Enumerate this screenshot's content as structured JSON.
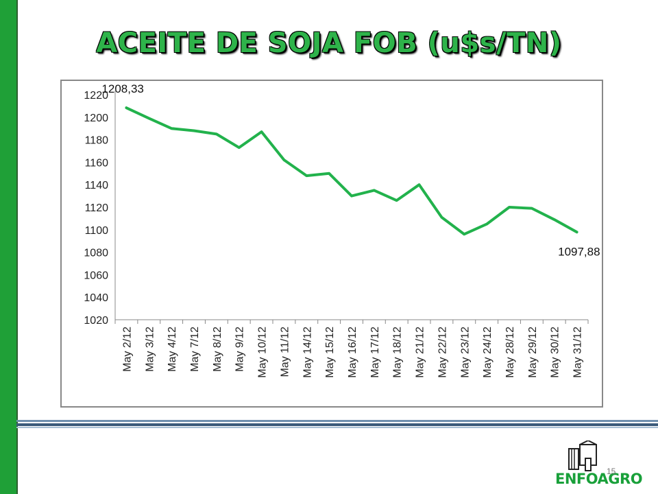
{
  "slide": {
    "title": "ACEITE DE SOJA FOB (u$s/TN)",
    "page_number": "15",
    "logo_text": "ENFOAGRO"
  },
  "colors": {
    "line": "#22b24c",
    "accent_bar": "#1fa037",
    "title": "#2eb34a"
  },
  "chart_data": {
    "type": "line",
    "title": "",
    "xlabel": "",
    "ylabel": "",
    "ylim": [
      1020,
      1220
    ],
    "yticks": [
      1020,
      1040,
      1060,
      1080,
      1100,
      1120,
      1140,
      1160,
      1180,
      1200,
      1220
    ],
    "grid": false,
    "legend": "none",
    "categories": [
      "May 2/12",
      "May 3/12",
      "May 4/12",
      "May 7/12",
      "May 8/12",
      "May 9/12",
      "May 10/12",
      "May 11/12",
      "May 14/12",
      "May 15/12",
      "May 16/12",
      "May 17/12",
      "May 18/12",
      "May 21/12",
      "May 22/12",
      "May 23/12",
      "May 24/12",
      "May 28/12",
      "May 29/12",
      "May 30/12",
      "May 31/12"
    ],
    "values": [
      1208.33,
      1199,
      1190,
      1188,
      1185,
      1173,
      1187,
      1162,
      1148,
      1150,
      1130,
      1135,
      1126,
      1140,
      1111,
      1096,
      1105,
      1120,
      1119,
      1109,
      1097.88
    ],
    "annotations": [
      {
        "text": "1208,33",
        "index": 0
      },
      {
        "text": "1097,88",
        "index": 20
      }
    ]
  }
}
